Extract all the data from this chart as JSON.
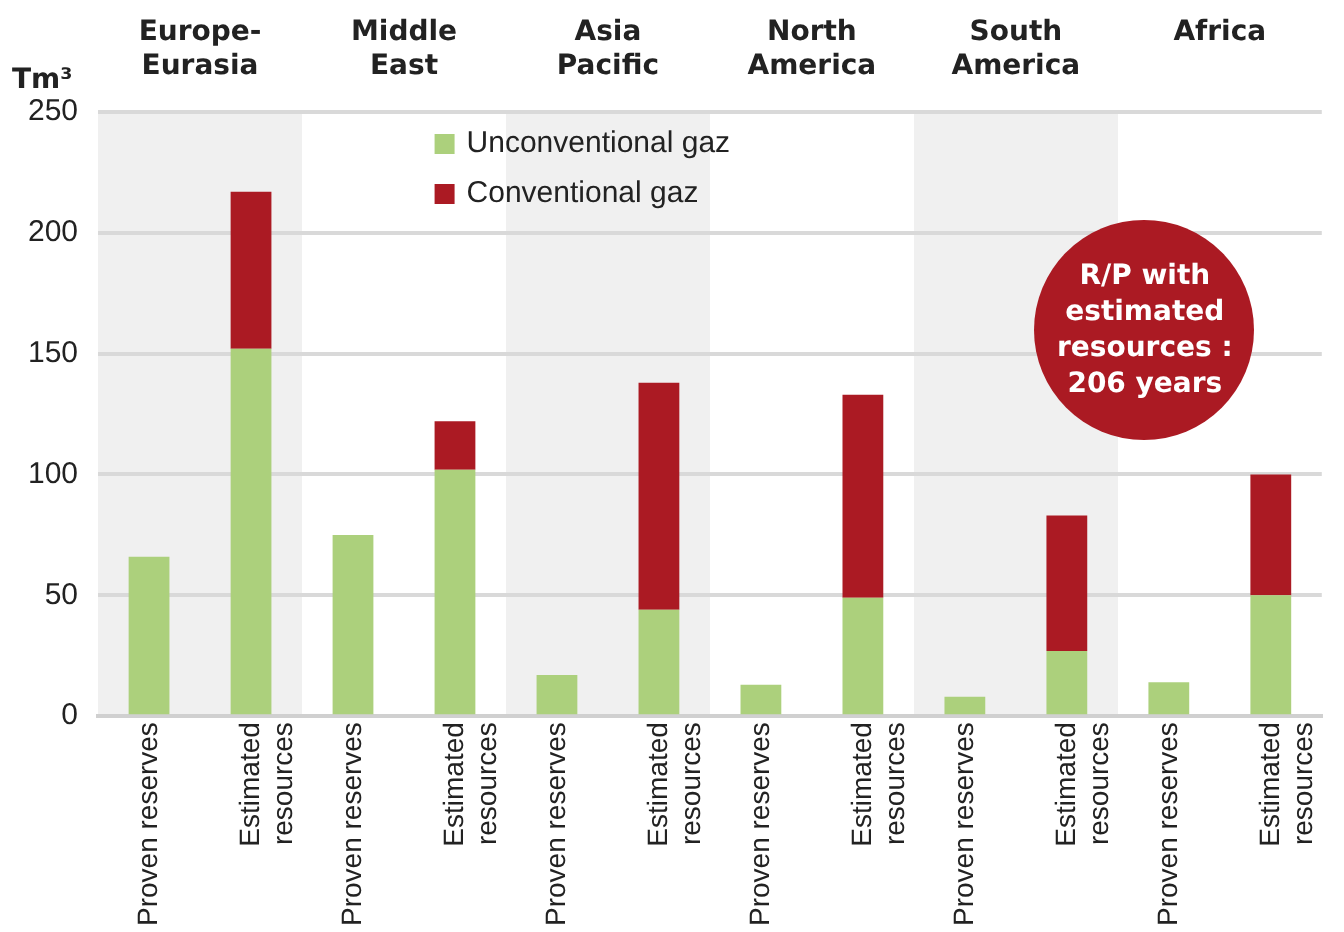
{
  "chart_data": {
    "type": "bar",
    "stacked": true,
    "ylabel": "Tm³",
    "categories": [
      "Proven reserves",
      "Estimated resources",
      "Proven reserves",
      "Estimated resources",
      "Proven reserves",
      "Estimated resources",
      "Proven reserves",
      "Estimated resources",
      "Proven reserves",
      "Estimated resources",
      "Proven reserves",
      "Estimated resources"
    ],
    "series": [
      {
        "name": "Unconventional gaz",
        "color": "#acd07c",
        "values": [
          66,
          152,
          75,
          102,
          17,
          44,
          13,
          49,
          8,
          27,
          14,
          50
        ]
      },
      {
        "name": "Conventional gaz",
        "color": "#ab1a23",
        "values": [
          null,
          65,
          null,
          20,
          null,
          94,
          null,
          84,
          null,
          56,
          null,
          50
        ]
      }
    ],
    "ylim": [
      0,
      250
    ],
    "yticks": [
      0,
      50,
      100,
      150,
      200,
      250
    ],
    "grid": "y",
    "legend": "top",
    "annotations": [
      "Europe-Eurasia",
      "Middle East",
      "Asia Pacific",
      "North America",
      "South America",
      "Africa",
      "R/P with estimated resources : 206 years"
    ]
  }
}
